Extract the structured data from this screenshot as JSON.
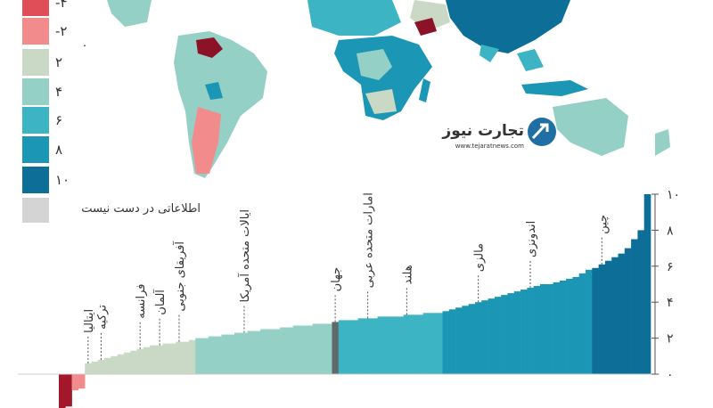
{
  "chart_data": {
    "type": "bar",
    "series": [
      {
        "color": "#a3172b",
        "values": [
          -1.9,
          -1.8
        ]
      },
      {
        "color": "#f28b8b",
        "values": [
          -0.9,
          -0.8
        ]
      },
      {
        "color": "#c9d9c5",
        "values": [
          0.6,
          0.7,
          0.8,
          0.9,
          1.0,
          1.1,
          1.2,
          1.3,
          1.4,
          1.5,
          1.6,
          1.6,
          1.7,
          1.7,
          1.8,
          1.8,
          1.9
        ]
      },
      {
        "color": "#95d0c7",
        "values": [
          2.0,
          2.0,
          2.1,
          2.1,
          2.2,
          2.2,
          2.3,
          2.3,
          2.4,
          2.4,
          2.5,
          2.5,
          2.5,
          2.6,
          2.6,
          2.7,
          2.7,
          2.7,
          2.8,
          2.8,
          2.8
        ]
      },
      {
        "color": "#5f6b6b",
        "values": [
          2.9
        ]
      },
      {
        "color": "#3cb4c4",
        "values": [
          3.0,
          3.0,
          3.0,
          3.1,
          3.1,
          3.1,
          3.2,
          3.2,
          3.2,
          3.2,
          3.3,
          3.3,
          3.3,
          3.4,
          3.4,
          3.4
        ]
      },
      {
        "color": "#1b97b5",
        "values": [
          3.5,
          3.6,
          3.7,
          3.8,
          3.9,
          4.0,
          4.1,
          4.2,
          4.3,
          4.4,
          4.5,
          4.6,
          4.7,
          4.8,
          4.9,
          5.0,
          5.0,
          5.1,
          5.2,
          5.3,
          5.4,
          5.6,
          5.8
        ]
      },
      {
        "color": "#0d6e98",
        "values": [
          5.9,
          6.1,
          6.3,
          6.5,
          6.7,
          7.0,
          7.5,
          8.0,
          10.0
        ]
      }
    ],
    "ylim": [
      -2,
      10
    ],
    "yticks": [
      {
        "value": 0,
        "label": "۰"
      },
      {
        "value": 2,
        "label": "۲"
      },
      {
        "value": 4,
        "label": "۴"
      },
      {
        "value": 6,
        "label": "۶"
      },
      {
        "value": 8,
        "label": "۸"
      },
      {
        "value": 10,
        "label": "۱۰"
      }
    ],
    "annotations": [
      {
        "series": 2,
        "index": 0,
        "label": "ایتالیا"
      },
      {
        "series": 2,
        "index": 2,
        "label": "ترکیه"
      },
      {
        "series": 2,
        "index": 8,
        "label": "فرانسه"
      },
      {
        "series": 2,
        "index": 11,
        "label": "آلمان"
      },
      {
        "series": 2,
        "index": 14,
        "label": "آفریقای جنوبی"
      },
      {
        "series": 3,
        "index": 7,
        "label": "ایالات متحده آمریکا"
      },
      {
        "series": 4,
        "index": 0,
        "label": "جهان"
      },
      {
        "series": 5,
        "index": 4,
        "label": "امارات متحده عربی"
      },
      {
        "series": 5,
        "index": 10,
        "label": "هلند"
      },
      {
        "series": 6,
        "index": 5,
        "label": "مالزی"
      },
      {
        "series": 6,
        "index": 13,
        "label": "اندونزی"
      },
      {
        "series": 7,
        "index": 1,
        "label": "چین"
      }
    ]
  },
  "legend": {
    "items": [
      {
        "label": "-۴",
        "color": "#e04f57"
      },
      {
        "label": "-۲",
        "color": "#f28b8b"
      },
      {
        "label": "۲",
        "color": "#c9d9c5"
      },
      {
        "label": "۴",
        "color": "#95d0c7"
      },
      {
        "label": "۶",
        "color": "#3cb4c4"
      },
      {
        "label": "۸",
        "color": "#1b97b5"
      },
      {
        "label": "۱۰",
        "color": "#0d6e98"
      }
    ],
    "zero": "۰",
    "no_data": {
      "label": "اطلاعاتی در دست نیست",
      "color": "#d4d4d4"
    }
  },
  "logo": {
    "name": "تجارت نیوز",
    "url": "www.tejaratnews.com"
  }
}
